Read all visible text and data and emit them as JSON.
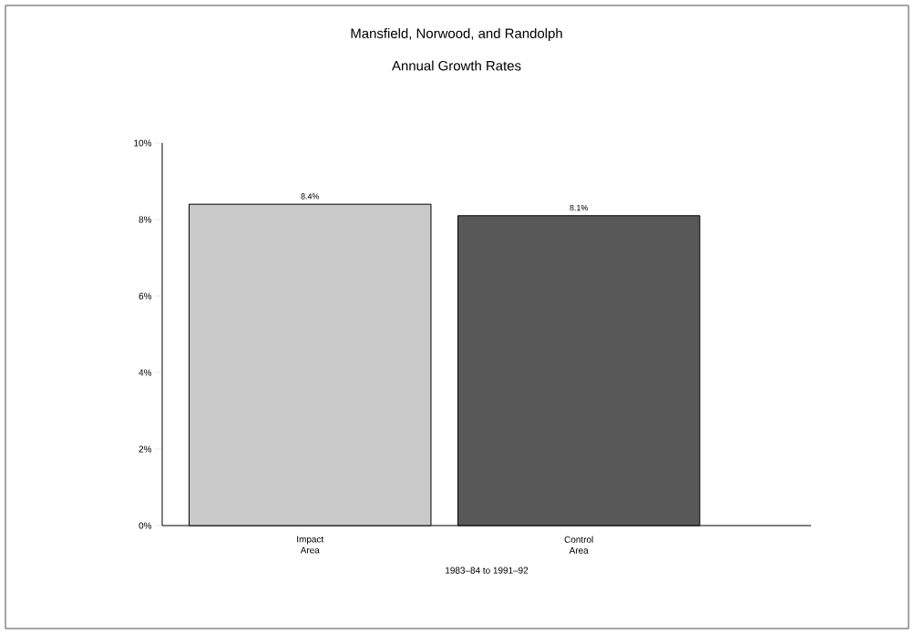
{
  "chart_data": {
    "type": "bar",
    "title": "Mansfield, Norwood, and Randolph",
    "subtitle": "Annual Growth Rates",
    "xlabel": "1983–84 to 1991–92",
    "categories": [
      "Impact Area",
      "Control Area"
    ],
    "values": [
      8.4,
      8.1
    ],
    "value_labels": [
      "8.4%",
      "8.1%"
    ],
    "colors": [
      "#c9c9c9",
      "#585858"
    ],
    "ylim": [
      0,
      10
    ],
    "yticks": [
      {
        "value": 0,
        "label": "0%"
      },
      {
        "value": 2,
        "label": "2%"
      },
      {
        "value": 4,
        "label": "4%"
      },
      {
        "value": 6,
        "label": "6%"
      },
      {
        "value": 8,
        "label": "8%"
      },
      {
        "value": 10,
        "label": "10%"
      }
    ]
  }
}
